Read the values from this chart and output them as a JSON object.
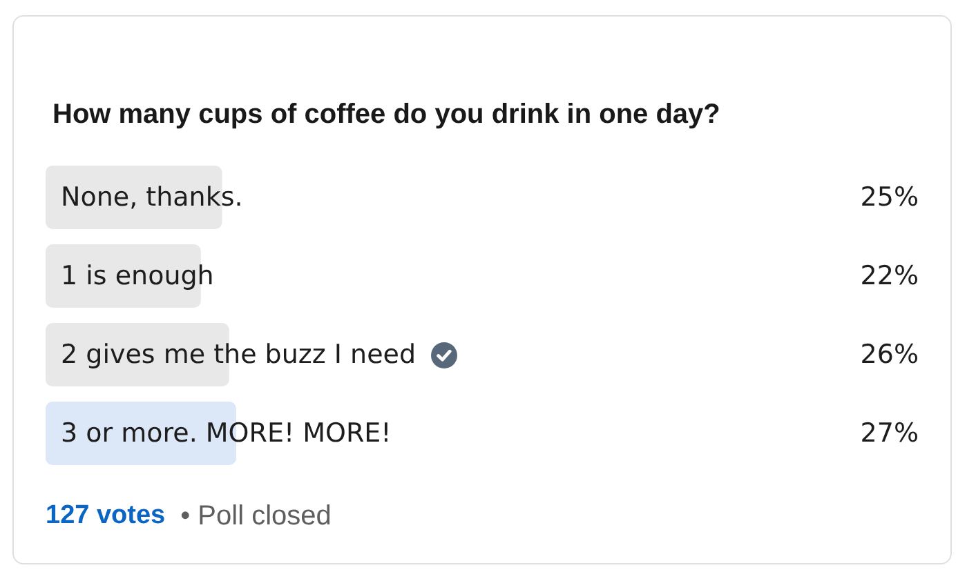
{
  "chart_data": {
    "type": "bar",
    "orientation": "horizontal",
    "title": "How many cups of coffee do you drink in one day?",
    "categories": [
      "None, thanks.",
      "1 is enough",
      "2 gives me the buzz I need",
      "3 or more. MORE! MORE!"
    ],
    "values": [
      25,
      22,
      26,
      27
    ],
    "colors": [
      "#e8e8e8",
      "#e8e8e8",
      "#e8e8e8",
      "#dce7f8"
    ],
    "value_labels": [
      "25%",
      "22%",
      "26%",
      "27%"
    ],
    "tick_labels": "y",
    "annotations": [
      "127 votes",
      "• Poll closed"
    ]
  }
}
